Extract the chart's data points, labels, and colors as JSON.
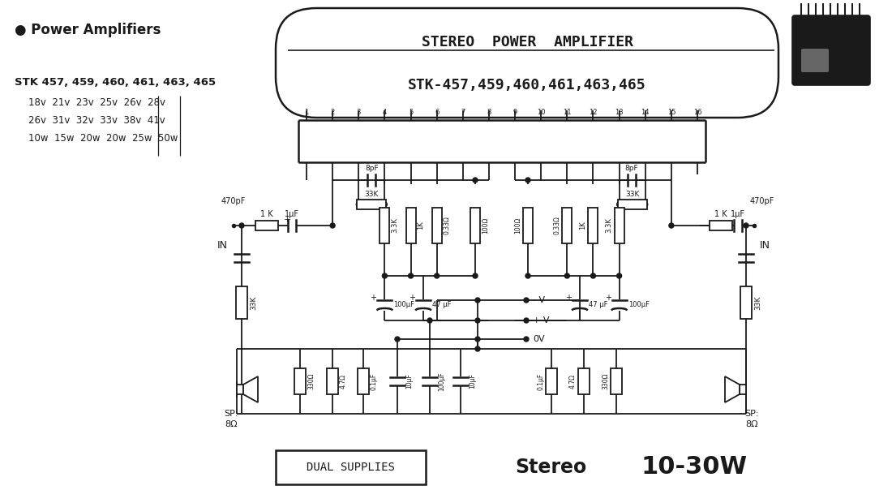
{
  "bg_color": "#ffffff",
  "lc": "#1a1a1a",
  "title_text1": "STEREO  POWER  AMPLIFIER",
  "title_text2": "STK-457,459,460,461,463,465",
  "header": "● Power Amplifiers",
  "stk_bold": "STK 457, 459, 460, 461, 463, 465",
  "row1": "18v  21v  23v  25v  26v  28v",
  "row2": "26v  31v  32v  33v  38v  41v",
  "row3": "10w  15w  20w  20w  25w  50w",
  "pins": [
    "1",
    "2",
    "3",
    "4",
    "5",
    "6",
    "7",
    "8",
    "9",
    "10",
    "11",
    "12",
    "13",
    "14",
    "15",
    "16"
  ],
  "dual_supplies": "DUAL SUPPLIES",
  "stereo": "Stereo",
  "power": "10-30W",
  "figsize": [
    11.0,
    6.2
  ],
  "dpi": 100
}
